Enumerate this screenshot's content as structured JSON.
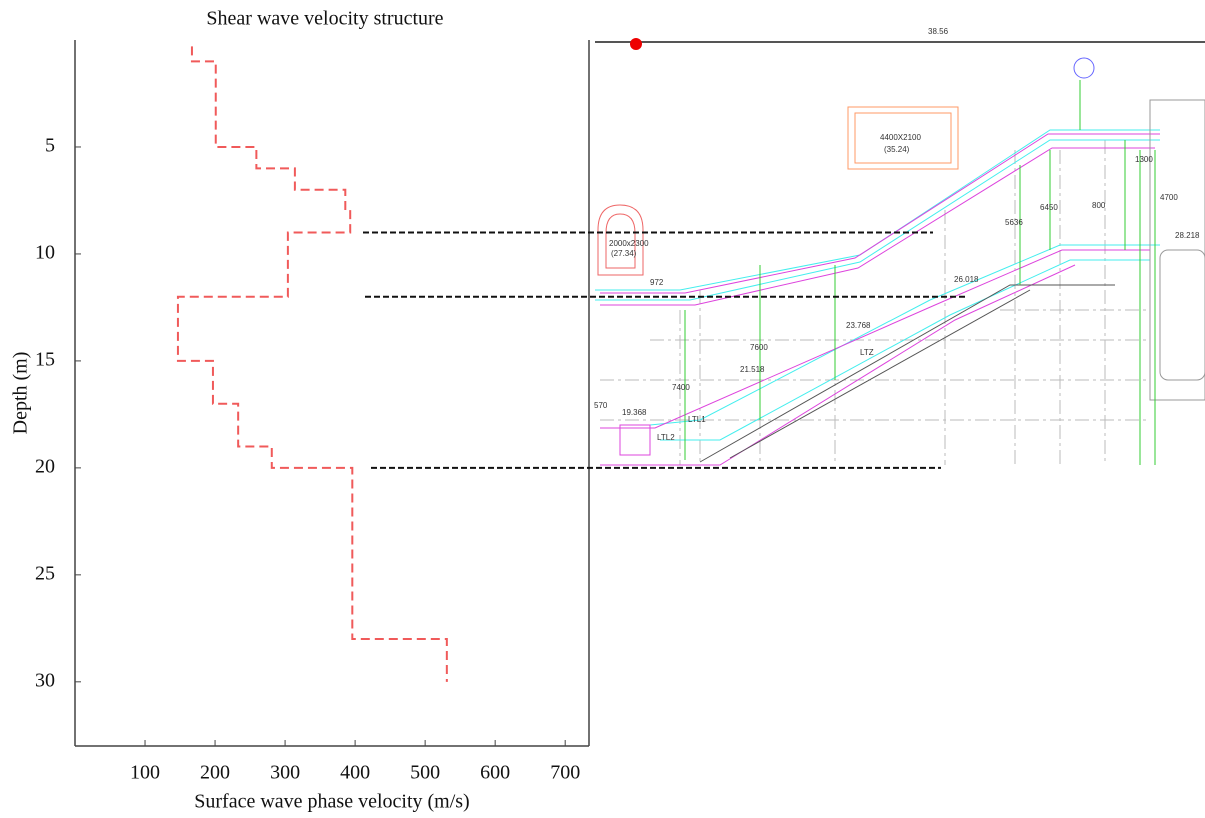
{
  "chart_data": {
    "type": "line",
    "title": "Shear wave velocity structure",
    "xlabel": "Surface wave phase velocity (m/s)",
    "ylabel": "Depth (m)",
    "color": "#f05a5a",
    "x": [
      167,
      167,
      201,
      201,
      259,
      259,
      314,
      314,
      386,
      386,
      393,
      393,
      304,
      304,
      147,
      147,
      197,
      197,
      233,
      233,
      281,
      281,
      396,
      396,
      531,
      531
    ],
    "values": [
      0.3,
      1,
      1,
      5,
      5,
      6,
      6,
      7,
      7,
      8,
      8,
      9,
      9,
      12,
      12,
      15,
      15,
      17,
      17,
      19,
      19,
      20,
      20,
      28,
      28,
      30
    ],
    "xlim": [
      0,
      734
    ],
    "ylim": [
      0,
      33
    ],
    "y_inverted": true,
    "xticks": [
      100,
      200,
      300,
      400,
      500,
      600,
      700
    ],
    "yticks": [
      5,
      10,
      15,
      20,
      25,
      30
    ],
    "reference_depths": [
      9,
      12,
      20
    ]
  },
  "drawing": {
    "labels": [
      "38.56",
      "4400X2100",
      "(35.24)",
      "2000x2300",
      "(27.34)",
      "26.018",
      "23.768",
      "21.518",
      "19.368",
      "28.218",
      "LTZ",
      "LTL1",
      "LTL2",
      "5636",
      "6450",
      "7600",
      "7400",
      "972",
      "570",
      "1300",
      "800",
      "4700"
    ]
  }
}
